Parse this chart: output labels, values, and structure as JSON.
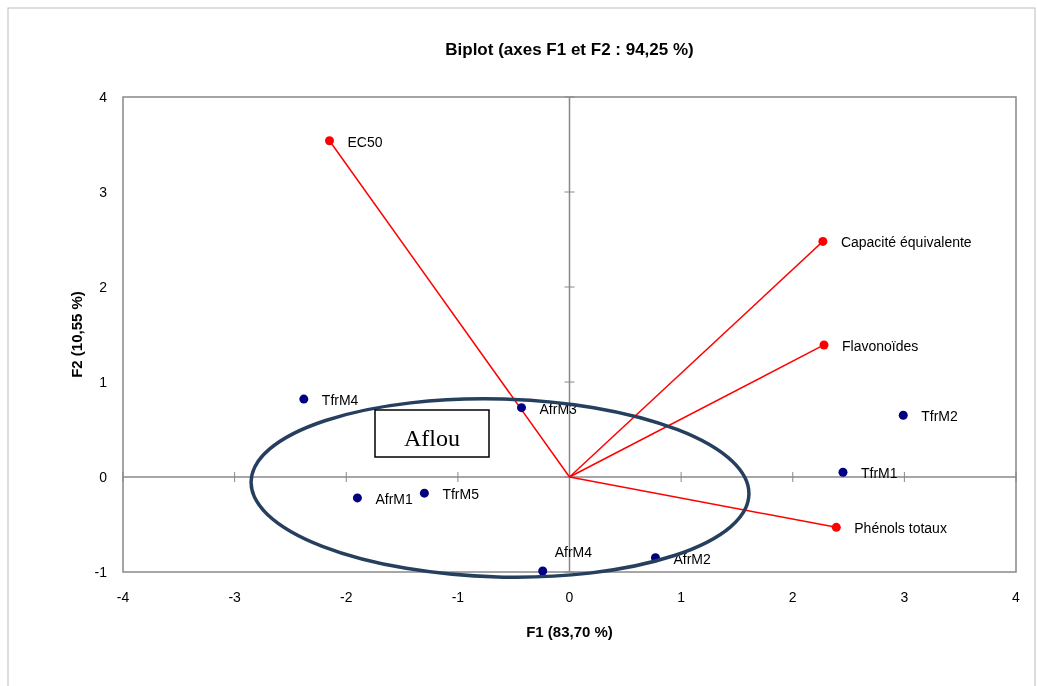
{
  "chart_data": {
    "type": "scatter",
    "title": "Biplot (axes F1 et F2 : 94,25 %)",
    "xlabel": "F1 (83,70 %)",
    "ylabel": "F2 (10,55 %)",
    "xlim": [
      -4,
      4
    ],
    "xticks": [
      -4,
      -3,
      -2,
      -1,
      0,
      1,
      2,
      3,
      4
    ],
    "ylim": [
      -1,
      4
    ],
    "yticks": [
      -1,
      0,
      1,
      2,
      3,
      4
    ],
    "series": [
      {
        "type": "line",
        "color": "#ff0000",
        "x": [
          0,
          -2.15
        ],
        "values": [
          0,
          3.54
        ],
        "marker": "none"
      },
      {
        "type": "line",
        "color": "#ff0000",
        "x": [
          0,
          2.27
        ],
        "values": [
          0,
          2.48
        ],
        "marker": "none"
      },
      {
        "type": "line",
        "color": "#ff0000",
        "x": [
          0,
          2.28
        ],
        "values": [
          0,
          1.39
        ],
        "marker": "none"
      },
      {
        "type": "line",
        "color": "#ff0000",
        "x": [
          0,
          2.39
        ],
        "values": [
          0,
          -0.53
        ],
        "marker": "none"
      },
      {
        "color": "#ff0000",
        "x": [
          -2.15,
          2.27,
          2.28,
          2.39
        ],
        "values": [
          3.54,
          2.48,
          1.39,
          -0.53
        ],
        "marker": "circle"
      },
      {
        "color": "#000080",
        "x": [
          -2.38,
          -0.43,
          2.99,
          2.45,
          -1.9,
          -1.3,
          -0.24,
          0.77
        ],
        "values": [
          0.82,
          0.73,
          0.65,
          0.05,
          -0.22,
          -0.17,
          -0.99,
          -0.85
        ],
        "marker": "circle"
      }
    ],
    "annotations": [
      {
        "text": "EC50",
        "x": -2.15,
        "y": 3.54
      },
      {
        "text": "Capacité équivalente",
        "x": 2.27,
        "y": 2.48
      },
      {
        "text": "Flavonoïdes",
        "x": 2.28,
        "y": 1.39
      },
      {
        "text": "Phénols totaux",
        "x": 2.39,
        "y": -0.53
      },
      {
        "text": "TfrM4",
        "x": -2.38,
        "y": 0.82
      },
      {
        "text": "AfrM3",
        "x": -0.43,
        "y": 0.73
      },
      {
        "text": "TfrM2",
        "x": 2.99,
        "y": 0.65
      },
      {
        "text": "TfrM1",
        "x": 2.45,
        "y": 0.05
      },
      {
        "text": "AfrM1",
        "x": -1.9,
        "y": -0.22
      },
      {
        "text": "TfrM5",
        "x": -1.3,
        "y": -0.17
      },
      {
        "text": "AfrM4",
        "x": -0.24,
        "y": -0.99
      },
      {
        "text": "AfrM2",
        "x": 0.77,
        "y": -0.85
      },
      "Aflou"
    ]
  }
}
